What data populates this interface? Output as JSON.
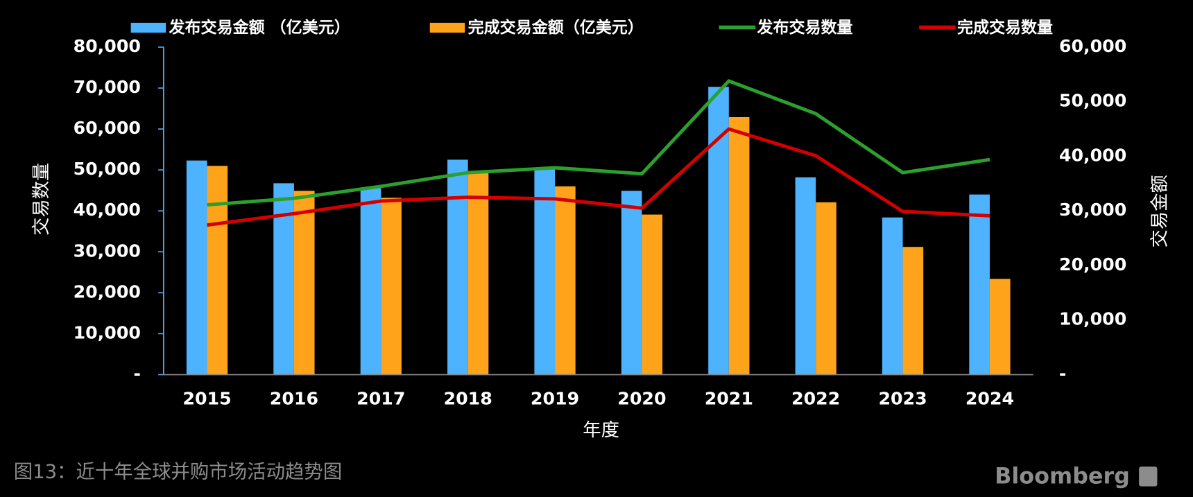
{
  "chart_data": {
    "type": "bar-line",
    "categories": [
      "2015",
      "2016",
      "2017",
      "2018",
      "2019",
      "2020",
      "2021",
      "2022",
      "2023",
      "2024"
    ],
    "series": [
      {
        "name": "发布交易金额 （亿美元）",
        "type": "bar",
        "axis": "y",
        "color": "#4db3ff",
        "values": [
          52300,
          46750,
          45600,
          52500,
          50600,
          44900,
          70300,
          48200,
          38400,
          44000
        ]
      },
      {
        "name": "完成交易金额（亿美元）",
        "type": "bar",
        "axis": "y",
        "color": "#ffa31a",
        "values": [
          51000,
          44900,
          43200,
          49200,
          46000,
          39100,
          62900,
          42100,
          31200,
          23400
        ]
      },
      {
        "name": "发布交易数量",
        "type": "line",
        "axis": "y2",
        "color": "#2ca02c",
        "values": [
          31100,
          32300,
          34500,
          37000,
          37900,
          36800,
          53800,
          47800,
          37000,
          39400
        ]
      },
      {
        "name": "完成交易数量",
        "type": "line",
        "axis": "y2",
        "color": "#d40000",
        "values": [
          27400,
          29500,
          31800,
          32500,
          32200,
          30500,
          45000,
          40100,
          29900,
          29100
        ]
      }
    ],
    "ylim": [
      0,
      80000
    ],
    "yticks": [
      {
        "value": 0,
        "label": "-"
      },
      {
        "value": 10000,
        "label": "10,000"
      },
      {
        "value": 20000,
        "label": "20,000"
      },
      {
        "value": 30000,
        "label": "30,000"
      },
      {
        "value": 40000,
        "label": "40,000"
      },
      {
        "value": 50000,
        "label": "50,000"
      },
      {
        "value": 60000,
        "label": "60,000"
      },
      {
        "value": 70000,
        "label": "70,000"
      },
      {
        "value": 80000,
        "label": "80,000"
      }
    ],
    "y2lim": [
      0,
      60000
    ],
    "y2ticks": [
      {
        "value": 0,
        "label": "-"
      },
      {
        "value": 10000,
        "label": "10,000"
      },
      {
        "value": 20000,
        "label": "20,000"
      },
      {
        "value": 30000,
        "label": "30,000"
      },
      {
        "value": 40000,
        "label": "40,000"
      },
      {
        "value": 50000,
        "label": "50,000"
      },
      {
        "value": 60000,
        "label": "60,000"
      }
    ],
    "y_label": "交易数量",
    "y2_label": "交易金额",
    "x_label": "年度",
    "caption": "图13：近十年全球并购市场活动趋势图",
    "source": "Bloomberg"
  }
}
